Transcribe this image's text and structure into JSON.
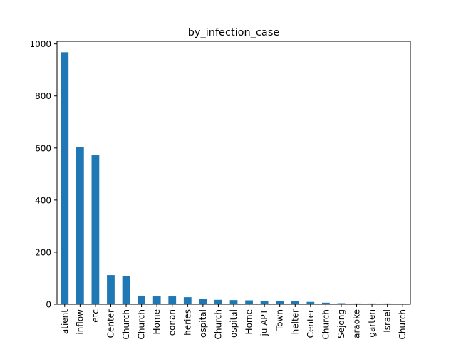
{
  "chart_data": {
    "type": "bar",
    "title": "by_infection_case",
    "xlabel": "",
    "ylabel": "",
    "ylim": [
      0,
      1010
    ],
    "yticks": [
      0,
      200,
      400,
      600,
      800,
      1000
    ],
    "categories": [
      "contact with patient",
      "overseas inflow",
      "etc",
      "Guro-gu Call Center",
      "Shincheonji Church",
      "Onchun Church",
      "Bonghwa Pureun Nursing Home",
      "Cheongdo Daenam Hospital/Gyeongsan Seorin Center/Eunpyeong St. Mary's Hospital/Seongdong-gu APT/Gyeongsan Jeil Silver Town/Haeundae Gun-Kyeongdongseo-gu Seoheon",
      "Coupang Logistics Center/Gyeonggi fisheries",
      "Changnyeong Coin Karaoke/Bundang Jesaeng Hospital",
      "Eunpyeong St. Mary's Church",
      "Seoul Hospital",
      "Gyeongsan Seorin Nursing Home",
      "Seongdong-gu APT",
      "Gyeongsan Jeil Silver Town",
      "Suyeong-gu Kindergarten Shelter",
      "Dongan Center",
      "Geochang Church",
      "Pilgrimage to Sejong",
      "Gyeongsan Cham Joeun Community Center Karaoke",
      "Gangnam Kindergarten",
      "Israel",
      "River of Grace Community Church"
    ],
    "tick_labels": [
      "atient",
      "inflow",
      "etc",
      "Center",
      "Church",
      "Church",
      "Home",
      "eonan",
      "heries",
      "ospital",
      "Church",
      "ospital",
      "Home",
      "ju APT",
      "Town",
      "helter",
      "Center",
      "Church",
      "Sejong",
      "araoke",
      "garten",
      "Israel",
      "Church"
    ],
    "values": [
      968,
      603,
      572,
      112,
      107,
      33,
      30,
      30,
      27,
      20,
      17,
      16,
      15,
      13,
      11,
      11,
      9,
      6,
      4,
      3,
      3,
      3,
      2
    ],
    "color": "#1f77b4",
    "grid": false,
    "legend": "none"
  }
}
